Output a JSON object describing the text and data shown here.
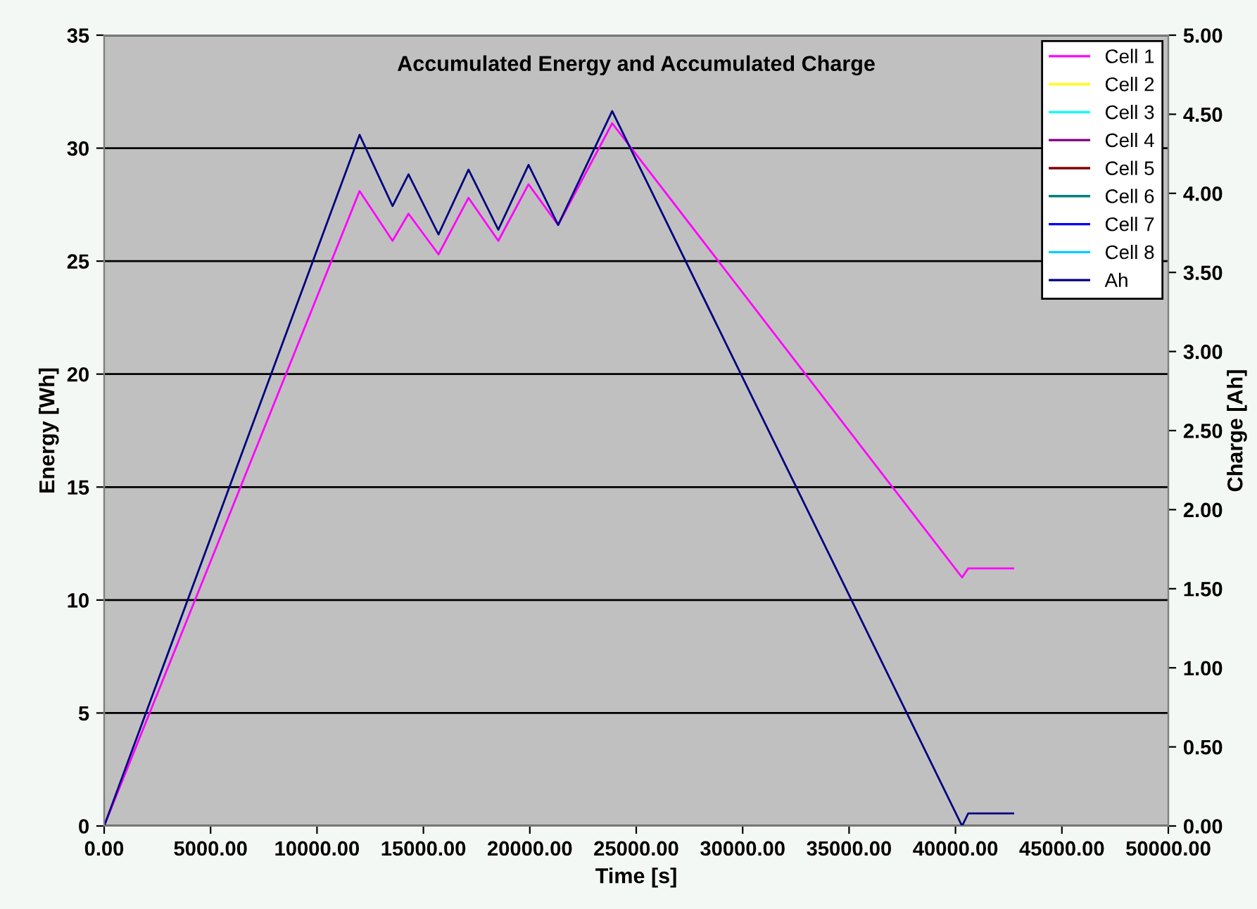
{
  "chart_data": {
    "type": "line",
    "title": "Accumulated Energy and Accumulated Charge",
    "xlabel": "Time [s]",
    "ylabel": "Energy [Wh]",
    "y2label": "Charge [Ah]",
    "x": [
      0,
      12000,
      13550,
      14300,
      15710,
      17120,
      18520,
      19940,
      21330,
      23870,
      40310,
      40600,
      42710
    ],
    "series": [
      {
        "name": "Cell 1",
        "color": "#ff00ff",
        "values": [
          0,
          28.1,
          25.9,
          27.1,
          25.3,
          27.8,
          25.9,
          28.4,
          26.6,
          31.1,
          11.0,
          11.4,
          11.4
        ]
      },
      {
        "name": "Cell 2",
        "color": "#ffff00",
        "values": [
          null,
          null,
          null,
          null,
          null,
          null,
          null,
          null,
          null,
          null,
          null,
          null,
          null
        ]
      },
      {
        "name": "Cell 3",
        "color": "#00ffff",
        "values": [
          null,
          null,
          null,
          null,
          null,
          null,
          null,
          null,
          null,
          null,
          null,
          null,
          null
        ]
      },
      {
        "name": "Cell 4",
        "color": "#800080",
        "values": [
          null,
          null,
          null,
          null,
          null,
          null,
          null,
          null,
          null,
          null,
          null,
          null,
          null
        ]
      },
      {
        "name": "Cell 5",
        "color": "#800000",
        "values": [
          null,
          null,
          null,
          null,
          null,
          null,
          null,
          null,
          null,
          null,
          null,
          null,
          null
        ]
      },
      {
        "name": "Cell 6",
        "color": "#008080",
        "values": [
          null,
          null,
          null,
          null,
          null,
          null,
          null,
          null,
          null,
          null,
          null,
          null,
          null
        ]
      },
      {
        "name": "Cell 7",
        "color": "#0000ff",
        "values": [
          null,
          null,
          null,
          null,
          null,
          null,
          null,
          null,
          null,
          null,
          null,
          null,
          null
        ]
      },
      {
        "name": "Cell 8",
        "color": "#00ccff",
        "values": [
          null,
          null,
          null,
          null,
          null,
          null,
          null,
          null,
          null,
          null,
          null,
          null,
          null
        ]
      },
      {
        "name": "Ah",
        "color": "#000080",
        "axis": "y2",
        "values": [
          0,
          4.37,
          3.92,
          4.12,
          3.74,
          4.15,
          3.77,
          4.18,
          3.8,
          4.52,
          0.0,
          0.08,
          0.08
        ]
      }
    ],
    "xlim": [
      0,
      50000
    ],
    "xticks": [
      {
        "value": 0,
        "label": "0.00"
      },
      {
        "value": 5000,
        "label": "5000.00"
      },
      {
        "value": 10000,
        "label": "10000.00"
      },
      {
        "value": 15000,
        "label": "15000.00"
      },
      {
        "value": 20000,
        "label": "20000.00"
      },
      {
        "value": 25000,
        "label": "25000.00"
      },
      {
        "value": 30000,
        "label": "30000.00"
      },
      {
        "value": 35000,
        "label": "35000.00"
      },
      {
        "value": 40000,
        "label": "40000.00"
      },
      {
        "value": 45000,
        "label": "45000.00"
      },
      {
        "value": 50000,
        "label": "50000.00"
      }
    ],
    "ylim": [
      0,
      35
    ],
    "yticks": [
      0,
      5,
      10,
      15,
      20,
      25,
      30,
      35
    ],
    "y2lim": [
      0,
      5
    ],
    "y2ticks": [
      {
        "value": 0,
        "label": "0.00"
      },
      {
        "value": 0.5,
        "label": "0.50"
      },
      {
        "value": 1,
        "label": "1.00"
      },
      {
        "value": 1.5,
        "label": "1.50"
      },
      {
        "value": 2,
        "label": "2.00"
      },
      {
        "value": 2.5,
        "label": "2.50"
      },
      {
        "value": 3,
        "label": "3.00"
      },
      {
        "value": 3.5,
        "label": "3.50"
      },
      {
        "value": 4,
        "label": "4.00"
      },
      {
        "value": 4.5,
        "label": "4.50"
      },
      {
        "value": 5,
        "label": "5.00"
      }
    ],
    "grid": "y",
    "legend": "top right",
    "marker": "none",
    "line_style": "solid"
  }
}
